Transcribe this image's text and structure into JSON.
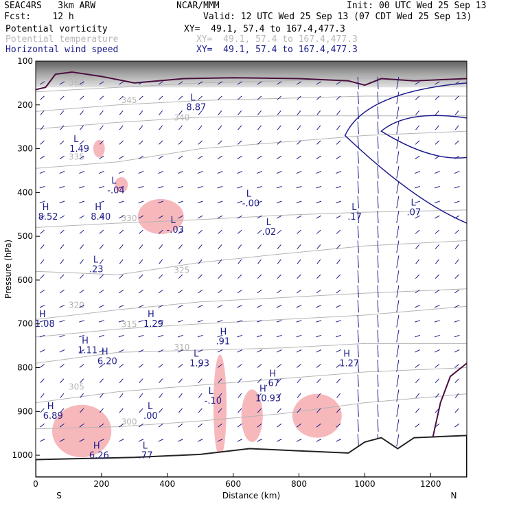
{
  "header": {
    "model": "SEAC4RS   3km ARW",
    "forecast": "Fcst:    12 h",
    "center": "NCAR/MMM",
    "init": "Init: 00 UTC Wed 25 Sep 13",
    "valid": "Valid: 12 UTC Wed 25 Sep 13 (07 CDT Wed 25 Sep 13)",
    "fields": [
      {
        "name": "Potential vorticity",
        "xy": "XY=  49.1, 57.4 to 167.4,477.3"
      },
      {
        "name": "Potential temperature",
        "xy": "XY=  49.1, 57.4 to 167.4,477.3"
      },
      {
        "name": "Horizontal wind speed",
        "xy": "XY=  49.1, 57.4 to 167.4,477.3"
      }
    ]
  },
  "colors": {
    "pv_fill": "#f7b8bc",
    "pv_line": "#4a0e3e",
    "theta": "#b4b4b4",
    "wind": "#1c1c8c",
    "terrain": "#222222"
  },
  "chart_data": {
    "type": "contour",
    "xlabel": "Distance (km)",
    "ylabel": "Pressure (hPa)",
    "xlim": [
      0,
      1310
    ],
    "ylim": [
      1050,
      100
    ],
    "x_ticks": [
      "0",
      "200",
      "400",
      "600",
      "800",
      "1000",
      "1200"
    ],
    "y_ticks": [
      "100",
      "200",
      "300",
      "400",
      "500",
      "600",
      "700",
      "800",
      "900",
      "1000"
    ],
    "end_labels": {
      "left": "S",
      "right": "N"
    },
    "theta_contours": [
      {
        "label": "360",
        "p": [
          170,
          160,
          150,
          145,
          140,
          140
        ]
      },
      {
        "label": "345",
        "p": [
          215,
          200,
          190,
          185,
          180,
          180
        ]
      },
      {
        "label": "340",
        "p": [
          255,
          240,
          228,
          225,
          225,
          225
        ]
      },
      {
        "label": "335",
        "p": [
          345,
          330,
          300,
          285,
          270,
          260
        ]
      },
      {
        "label": "330",
        "p": [
          480,
          470,
          462,
          452,
          445,
          440
        ]
      },
      {
        "label": "325",
        "p": [
          580,
          588,
          560,
          540,
          522,
          510
        ]
      },
      {
        "label": "320",
        "p": [
          690,
          668,
          650,
          640,
          630,
          620
        ]
      },
      {
        "label": "315",
        "p": [
          730,
          712,
          700,
          690,
          680,
          660
        ]
      },
      {
        "label": "310",
        "p": [
          790,
          765,
          760,
          755,
          745,
          745
        ]
      },
      {
        "label": "305",
        "p": [
          880,
          855,
          840,
          825,
          810,
          800
        ]
      },
      {
        "label": "300",
        "p": [
          940,
          935,
          922,
          905,
          880,
          860
        ]
      }
    ],
    "theta_x": [
      0,
      250,
      500,
      750,
      1000,
      1310
    ],
    "labels": [
      {
        "text": "L",
        "sub": "8.87",
        "x": 470,
        "p": 190
      },
      {
        "text": "L",
        "sub": "1.49",
        "x": 115,
        "p": 285
      },
      {
        "text": "L",
        "sub": "-.04",
        "x": 230,
        "p": 380
      },
      {
        "text": "L",
        "sub": "-.00",
        "x": 640,
        "p": 410
      },
      {
        "text": "H",
        "sub": "8.52",
        "x": 20,
        "p": 440
      },
      {
        "text": "H",
        "sub": "8.40",
        "x": 180,
        "p": 440
      },
      {
        "text": "L",
        "sub": "-.03",
        "x": 410,
        "p": 470
      },
      {
        "text": "L",
        "sub": ".02",
        "x": 700,
        "p": 475
      },
      {
        "text": "L",
        "sub": ".17",
        "x": 960,
        "p": 440
      },
      {
        "text": "L",
        "sub": ".07",
        "x": 1140,
        "p": 430
      },
      {
        "text": "L",
        "sub": ".23",
        "x": 175,
        "p": 560
      },
      {
        "text": "H",
        "sub": "1.29",
        "x": 340,
        "p": 685
      },
      {
        "text": "H",
        "sub": "1.08",
        "x": 10,
        "p": 685
      },
      {
        "text": "H",
        "sub": "1.11",
        "x": 140,
        "p": 745
      },
      {
        "text": "H",
        "sub": ".91",
        "x": 560,
        "p": 725
      },
      {
        "text": "H",
        "sub": "6.20",
        "x": 200,
        "p": 770
      },
      {
        "text": "L",
        "sub": "1.93",
        "x": 480,
        "p": 775
      },
      {
        "text": "H",
        "sub": "1.27",
        "x": 935,
        "p": 775
      },
      {
        "text": "H",
        "sub": ".67",
        "x": 710,
        "p": 820
      },
      {
        "text": "H",
        "sub": "10.93",
        "x": 680,
        "p": 855
      },
      {
        "text": "L",
        "sub": "-.10",
        "x": 525,
        "p": 860
      },
      {
        "text": "H",
        "sub": "6.89",
        "x": 35,
        "p": 895
      },
      {
        "text": "L",
        "sub": ".00",
        "x": 340,
        "p": 895
      },
      {
        "text": "H",
        "sub": "6.26",
        "x": 175,
        "p": 985
      },
      {
        "text": "L",
        "sub": ".77",
        "x": 325,
        "p": 985
      }
    ],
    "pv_patches": [
      {
        "x": [
          310,
          450
        ],
        "p": [
          415,
          495
        ]
      },
      {
        "x": [
          240,
          280
        ],
        "p": [
          365,
          400
        ]
      },
      {
        "x": [
          175,
          210
        ],
        "p": [
          280,
          320
        ]
      },
      {
        "x": [
          50,
          230
        ],
        "p": [
          885,
          1005
        ]
      },
      {
        "x": [
          540,
          580
        ],
        "p": [
          770,
          1005
        ]
      },
      {
        "x": [
          625,
          690
        ],
        "p": [
          850,
          970
        ]
      },
      {
        "x": [
          780,
          930
        ],
        "p": [
          860,
          960
        ]
      }
    ]
  }
}
